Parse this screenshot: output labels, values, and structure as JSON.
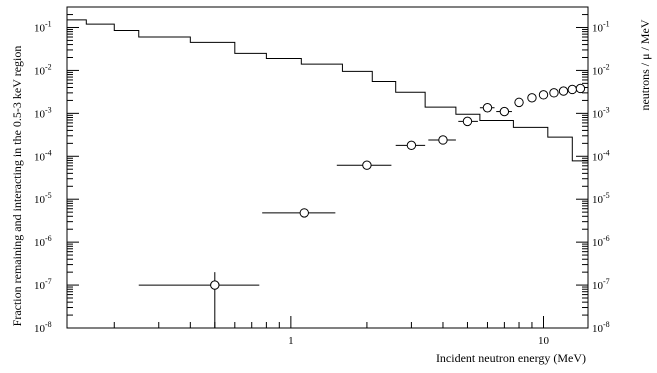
{
  "chart_data": {
    "type": "line",
    "xlabel": "Incident neutron energy (MeV)",
    "ylabel_left": "Fraction remaining and interacting in the 0.5-3 keV region",
    "ylabel_right": "neutrons / μ / MeV",
    "x_scale": "log",
    "y_scale": "log",
    "xlim": [
      0.13,
      15
    ],
    "ylim": [
      1e-08,
      0.3
    ],
    "grid": false,
    "x_ticks": [
      {
        "value": 1,
        "label": "1"
      },
      {
        "value": 10,
        "label": "10"
      }
    ],
    "y_ticks": [
      {
        "value": 1e-08,
        "base": "10",
        "exp": "-8"
      },
      {
        "value": 1e-07,
        "base": "10",
        "exp": "-7"
      },
      {
        "value": 1e-06,
        "base": "10",
        "exp": "-6"
      },
      {
        "value": 1e-05,
        "base": "10",
        "exp": "-5"
      },
      {
        "value": 0.0001,
        "base": "10",
        "exp": "-4"
      },
      {
        "value": 0.001,
        "base": "10",
        "exp": "-3"
      },
      {
        "value": 0.01,
        "base": "10",
        "exp": "-2"
      },
      {
        "value": 0.1,
        "base": "10",
        "exp": "-1"
      }
    ],
    "series": [
      {
        "style": "histogram",
        "axis": "right",
        "color": "#000000",
        "edges": [
          0.13,
          0.155,
          0.2,
          0.25,
          0.4,
          0.6,
          0.8,
          1.1,
          1.6,
          2.1,
          2.6,
          3.4,
          4.5,
          5.6,
          7.6,
          10.4,
          13.0,
          15.0
        ],
        "values": [
          0.15,
          0.12,
          0.085,
          0.06,
          0.045,
          0.025,
          0.019,
          0.014,
          0.0095,
          0.0055,
          0.0031,
          0.0014,
          0.00095,
          0.00068,
          0.00047,
          0.00028,
          7.8e-05
        ]
      },
      {
        "style": "points",
        "axis": "left",
        "marker": "open-circle",
        "color": "#000000",
        "points": [
          {
            "x": 0.5,
            "y": 1e-07,
            "xlo": 0.25,
            "xhi": 0.75,
            "ylo": 1e-08,
            "yhi": 2e-07
          },
          {
            "x": 1.13,
            "y": 4.8e-06,
            "xlo": 0.77,
            "xhi": 1.5
          },
          {
            "x": 2.0,
            "y": 6.2e-05,
            "xlo": 1.52,
            "xhi": 2.5
          },
          {
            "x": 3.0,
            "y": 0.00018,
            "xlo": 2.6,
            "xhi": 3.4
          },
          {
            "x": 4.0,
            "y": 0.00024,
            "xlo": 3.5,
            "xhi": 4.5
          },
          {
            "x": 5.0,
            "y": 0.00065,
            "xlo": 4.6,
            "xhi": 5.5
          },
          {
            "x": 6.0,
            "y": 0.00135,
            "xlo": 5.6,
            "xhi": 6.4
          },
          {
            "x": 7.0,
            "y": 0.0011,
            "xlo": 6.5,
            "xhi": 7.5
          },
          {
            "x": 8.0,
            "y": 0.0018
          },
          {
            "x": 9.0,
            "y": 0.0023
          },
          {
            "x": 10.0,
            "y": 0.0027
          },
          {
            "x": 11.0,
            "y": 0.003
          },
          {
            "x": 12.0,
            "y": 0.0033
          },
          {
            "x": 13.0,
            "y": 0.0036
          },
          {
            "x": 14.0,
            "y": 0.0038
          }
        ]
      }
    ]
  }
}
